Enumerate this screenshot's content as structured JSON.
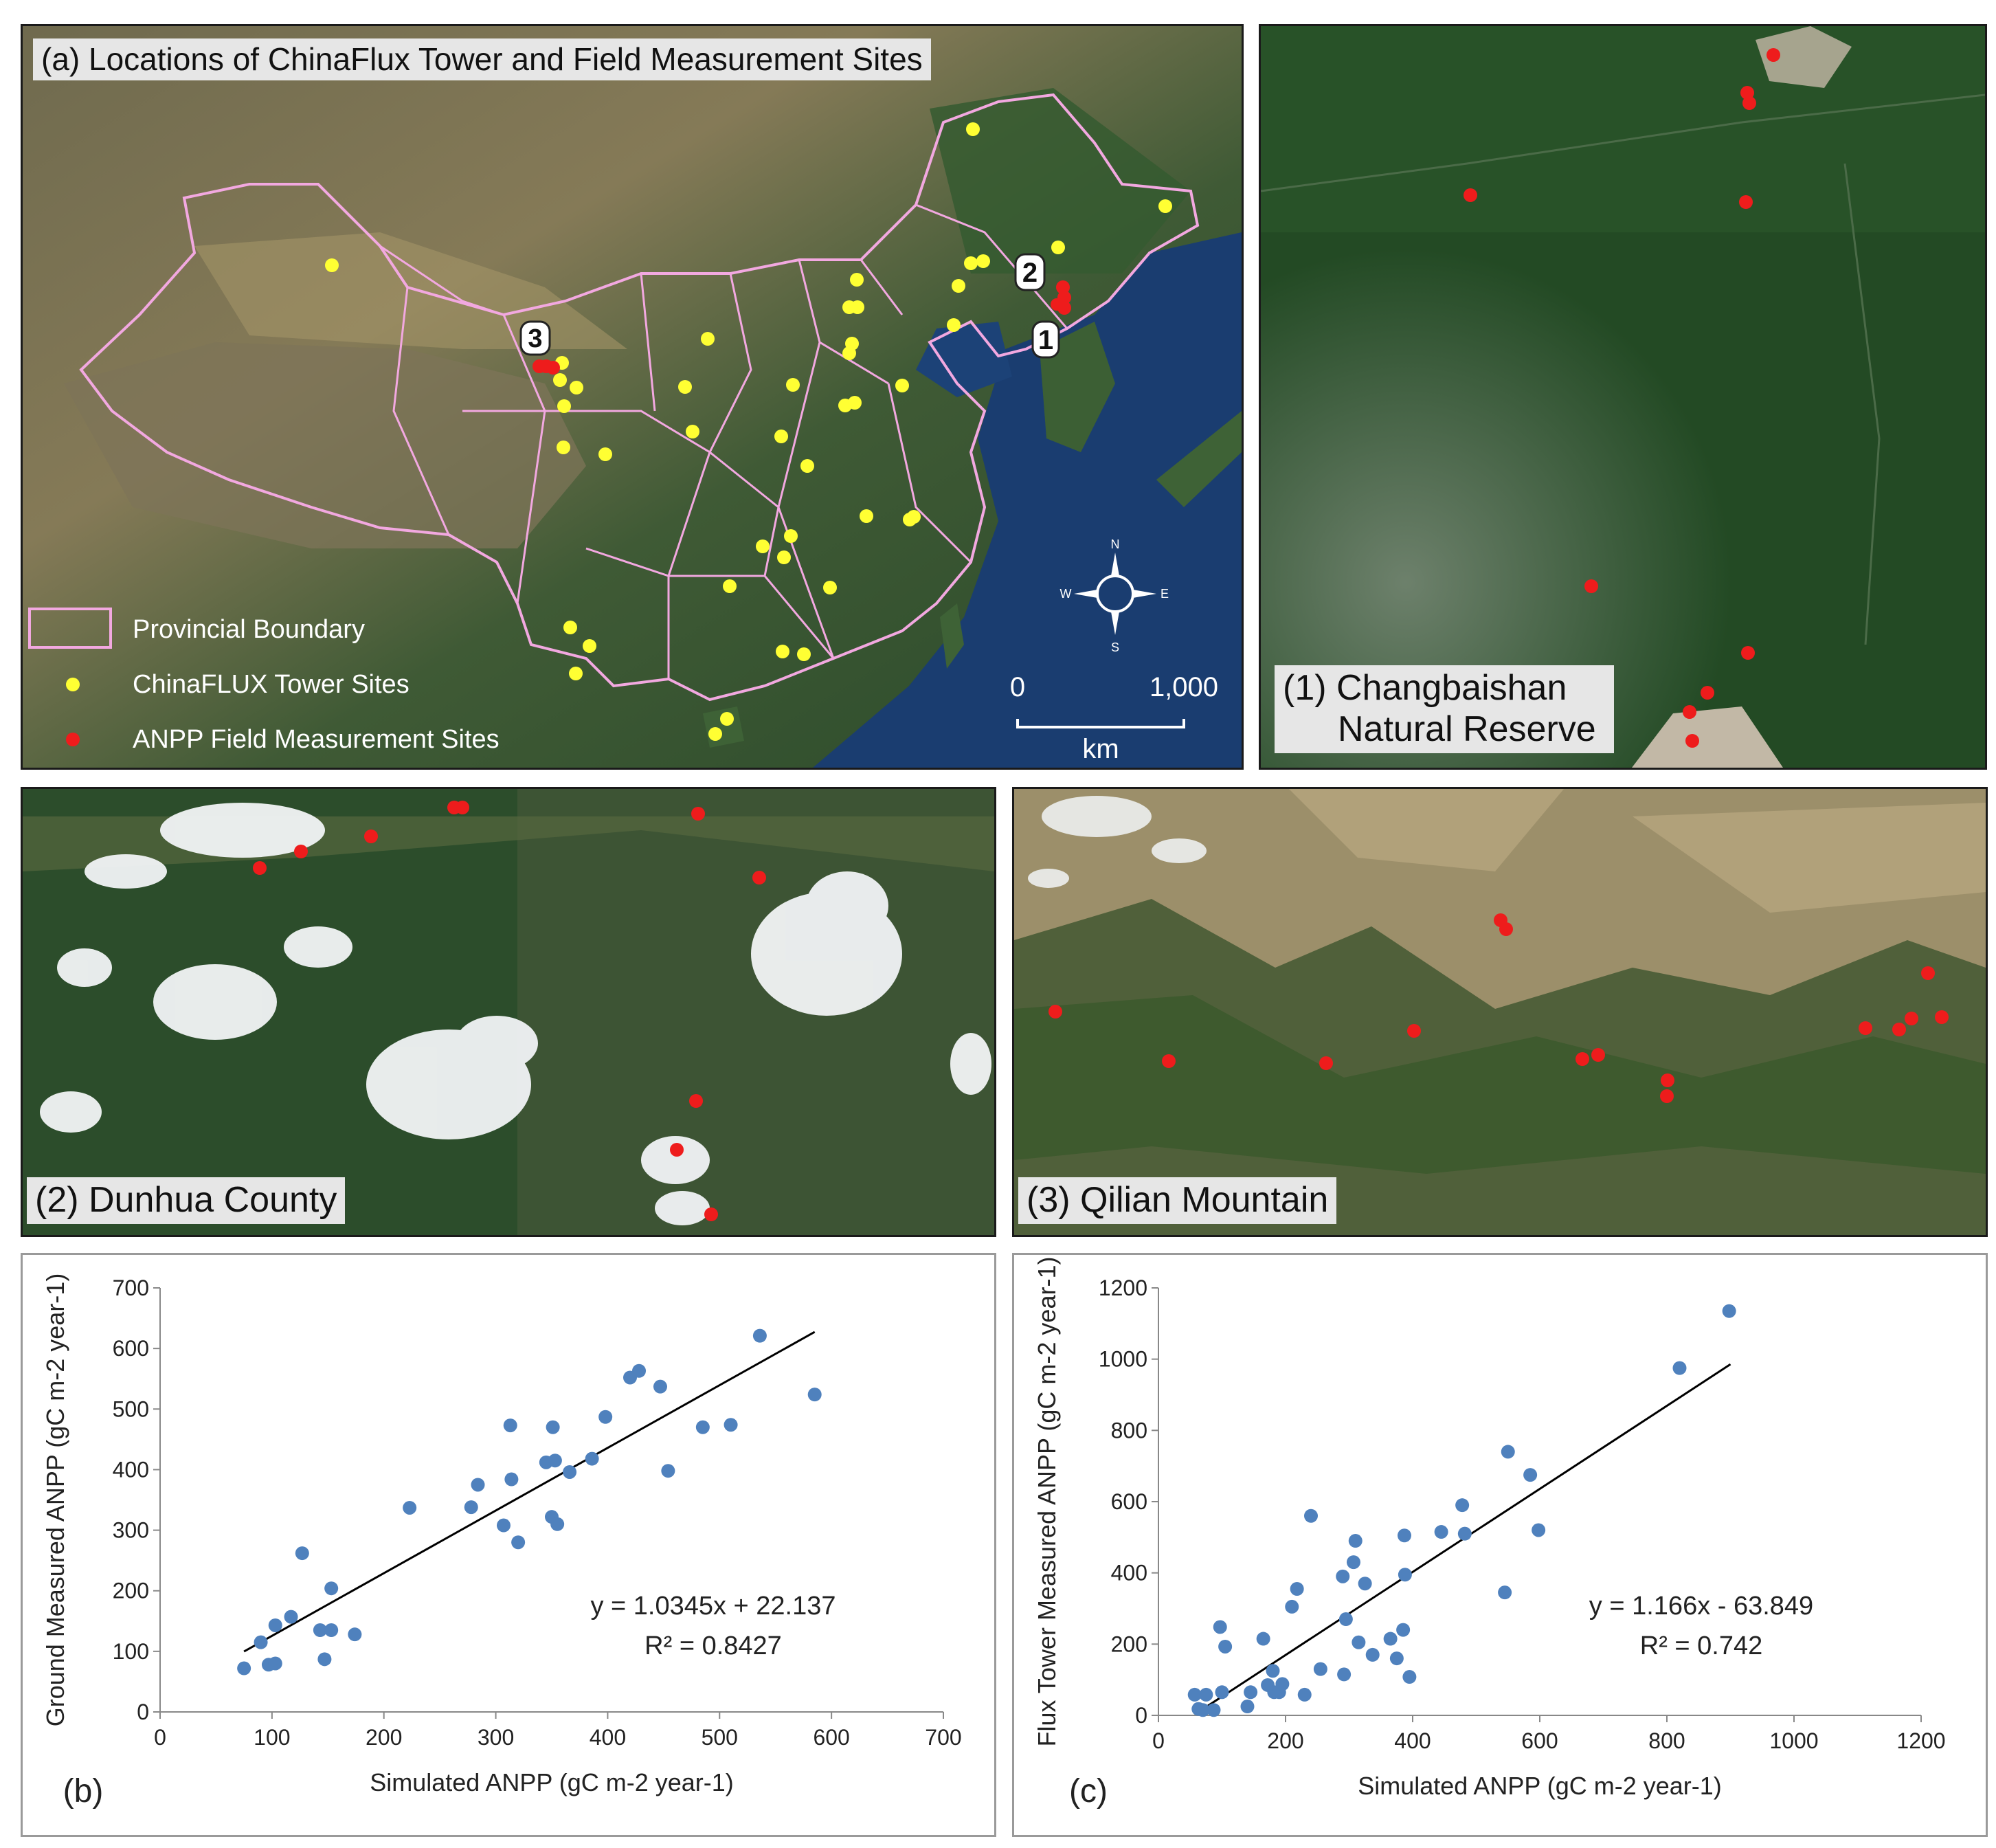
{
  "panel_a": {
    "title": "(a) Locations of ChinaFlux Tower and Field Measurement Sites",
    "legend": {
      "boundary": "Provincial Boundary",
      "tower": "ChinaFLUX Tower Sites",
      "anpp": "ANPP Field Measurement Sites"
    },
    "scale": {
      "zero": "0",
      "max": "1,000",
      "unit": "km"
    },
    "compass": {
      "n": "N",
      "s": "S",
      "e": "E",
      "w": "W"
    },
    "callouts": [
      "1",
      "2",
      "3"
    ],
    "colors": {
      "boundary": "#f2a8e0",
      "tower": "#ffff33",
      "anpp": "#ee1c1c"
    }
  },
  "panel_1": {
    "line1": "(1) Changbaishan",
    "line2": "Natural Reserve"
  },
  "panel_2": {
    "label": "(2) Dunhua County"
  },
  "panel_3": {
    "label": "(3) Qilian Mountain"
  },
  "chart_data": [
    {
      "type": "scatter",
      "panel_label": "(b)",
      "xlabel": "Simulated ANPP (gC m-2 year-1)",
      "ylabel": "Ground Measured ANPP (gC m-2 year-1)",
      "xlim": [
        0,
        700
      ],
      "ylim": [
        0,
        700
      ],
      "xticks": [
        0,
        100,
        200,
        300,
        400,
        500,
        600,
        700
      ],
      "yticks": [
        0,
        100,
        200,
        300,
        400,
        500,
        600,
        700
      ],
      "equation": "y = 1.0345x + 22.137",
      "r2": "R² = 0.8427",
      "trend": {
        "slope": 1.0345,
        "intercept": 22.137,
        "x_range": [
          75,
          585
        ]
      },
      "color": "#4f81bd",
      "points": [
        [
          75,
          72
        ],
        [
          90,
          115
        ],
        [
          97,
          78
        ],
        [
          103,
          80
        ],
        [
          103,
          143
        ],
        [
          117,
          157
        ],
        [
          127,
          262
        ],
        [
          143,
          135
        ],
        [
          147,
          87
        ],
        [
          153,
          204
        ],
        [
          153,
          135
        ],
        [
          174,
          128
        ],
        [
          223,
          337
        ],
        [
          278,
          338
        ],
        [
          284,
          375
        ],
        [
          307,
          308
        ],
        [
          313,
          473
        ],
        [
          314,
          384
        ],
        [
          320,
          280
        ],
        [
          345,
          412
        ],
        [
          350,
          322
        ],
        [
          351,
          470
        ],
        [
          353,
          415
        ],
        [
          355,
          310
        ],
        [
          366,
          396
        ],
        [
          386,
          418
        ],
        [
          398,
          487
        ],
        [
          420,
          552
        ],
        [
          428,
          563
        ],
        [
          447,
          537
        ],
        [
          454,
          398
        ],
        [
          485,
          470
        ],
        [
          510,
          474
        ],
        [
          536,
          621
        ],
        [
          585,
          524
        ]
      ]
    },
    {
      "type": "scatter",
      "panel_label": "(c)",
      "xlabel": "Simulated ANPP (gC m-2 year-1)",
      "ylabel": "Flux Tower Measured ANPP (gC m-2 year-1)",
      "xlim": [
        0,
        1200
      ],
      "ylim": [
        0,
        1200
      ],
      "xticks": [
        0,
        200,
        400,
        600,
        800,
        1000,
        1200
      ],
      "yticks": [
        0,
        200,
        400,
        600,
        800,
        1000,
        1200
      ],
      "equation": "y = 1.166x - 63.849",
      "r2": "R² = 0.742",
      "trend": {
        "slope": 1.166,
        "intercept": -63.849,
        "x_range": [
          65,
          900
        ]
      },
      "color": "#4f81bd",
      "points": [
        [
          57,
          58
        ],
        [
          63,
          18
        ],
        [
          70,
          15
        ],
        [
          75,
          58
        ],
        [
          87,
          15
        ],
        [
          97,
          248
        ],
        [
          100,
          65
        ],
        [
          105,
          193
        ],
        [
          140,
          25
        ],
        [
          145,
          65
        ],
        [
          165,
          215
        ],
        [
          172,
          85
        ],
        [
          180,
          125
        ],
        [
          182,
          65
        ],
        [
          190,
          65
        ],
        [
          195,
          88
        ],
        [
          210,
          305
        ],
        [
          218,
          355
        ],
        [
          230,
          58
        ],
        [
          240,
          560
        ],
        [
          255,
          130
        ],
        [
          290,
          390
        ],
        [
          292,
          115
        ],
        [
          295,
          270
        ],
        [
          307,
          430
        ],
        [
          310,
          490
        ],
        [
          315,
          205
        ],
        [
          325,
          370
        ],
        [
          337,
          170
        ],
        [
          365,
          215
        ],
        [
          375,
          160
        ],
        [
          385,
          240
        ],
        [
          387,
          505
        ],
        [
          388,
          395
        ],
        [
          395,
          108
        ],
        [
          445,
          515
        ],
        [
          478,
          590
        ],
        [
          482,
          510
        ],
        [
          545,
          345
        ],
        [
          550,
          740
        ],
        [
          585,
          675
        ],
        [
          598,
          520
        ],
        [
          820,
          975
        ],
        [
          898,
          1135
        ]
      ]
    }
  ]
}
